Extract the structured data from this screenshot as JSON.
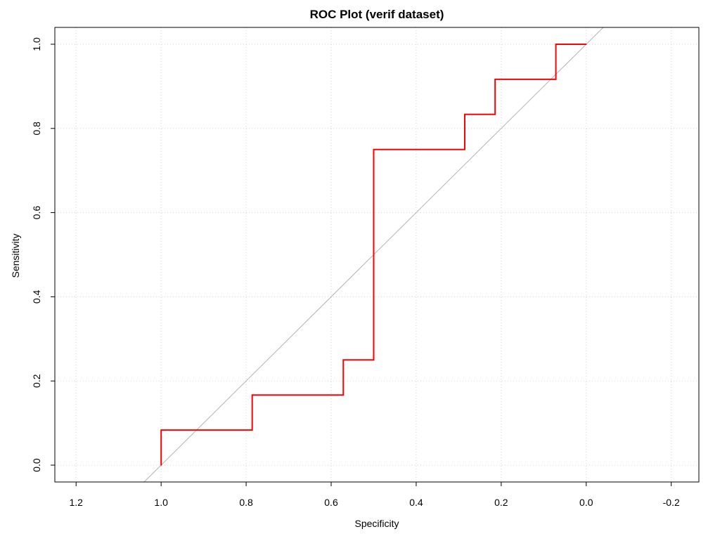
{
  "chart_data": {
    "type": "line",
    "title": "ROC Plot (verif dataset)",
    "xlabel": "Specificity",
    "ylabel": "Sensitivity",
    "x_reversed": true,
    "xlim": [
      1.25,
      -0.265
    ],
    "ylim": [
      -0.04,
      1.04
    ],
    "xticks": [
      1.2,
      1.0,
      0.8,
      0.6,
      0.4,
      0.2,
      0.0,
      -0.2
    ],
    "xtick_labels": [
      "1.2",
      "1.0",
      "0.8",
      "0.6",
      "0.4",
      "0.2",
      "0.0",
      "-0.2"
    ],
    "yticks": [
      0.0,
      0.2,
      0.4,
      0.6,
      0.8,
      1.0
    ],
    "ytick_labels": [
      "0.0",
      "0.2",
      "0.4",
      "0.6",
      "0.8",
      "1.0"
    ],
    "grid": true,
    "reference_line": {
      "from": [
        1.0,
        0.0
      ],
      "to": [
        0.0,
        1.0
      ],
      "color": "#b3b3b3"
    },
    "series": [
      {
        "color": "#ff0000",
        "points": [
          [
            1.0,
            0.0
          ],
          [
            1.0,
            0.0833
          ],
          [
            0.7857,
            0.0833
          ],
          [
            0.7857,
            0.1667
          ],
          [
            0.5714,
            0.1667
          ],
          [
            0.5714,
            0.25
          ],
          [
            0.5,
            0.25
          ],
          [
            0.5,
            0.75
          ],
          [
            0.2857,
            0.75
          ],
          [
            0.2857,
            0.8333
          ],
          [
            0.2143,
            0.8333
          ],
          [
            0.2143,
            0.9167
          ],
          [
            0.0714,
            0.9167
          ],
          [
            0.0714,
            1.0
          ],
          [
            0.0,
            1.0
          ]
        ]
      }
    ]
  }
}
